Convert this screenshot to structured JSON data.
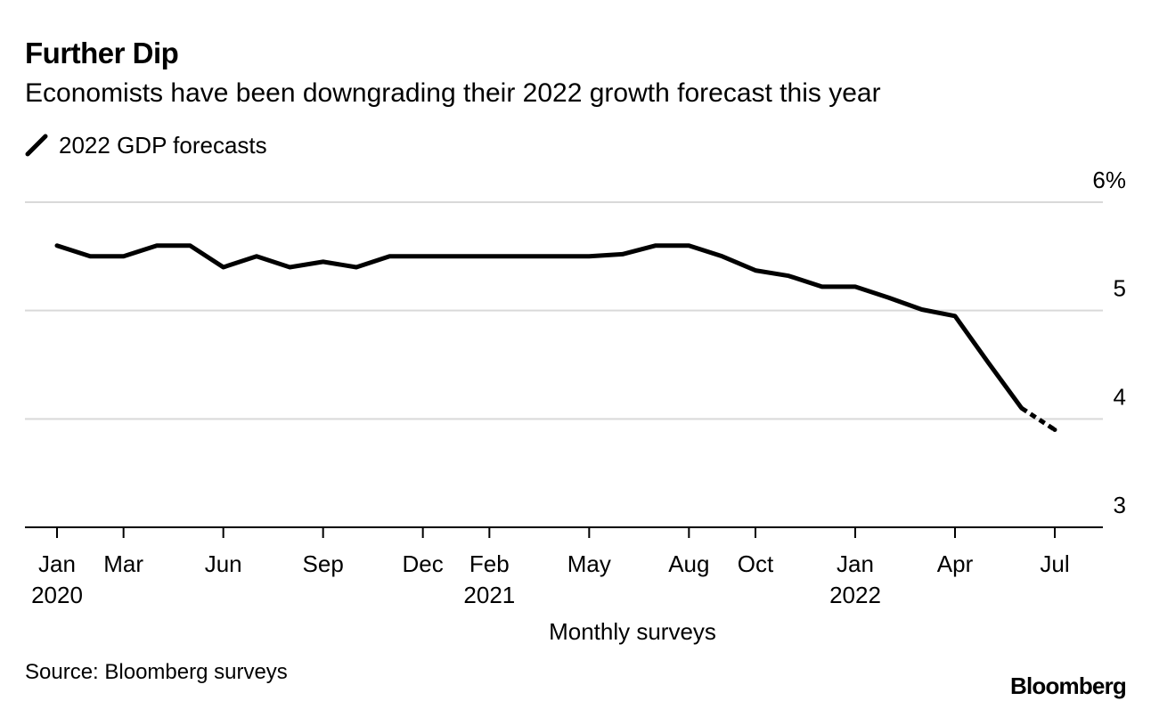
{
  "header": {
    "title": "Further Dip",
    "subtitle": "Economists have been downgrading their 2022 growth forecast this year"
  },
  "legend": {
    "label": "2022 GDP forecasts"
  },
  "footer": {
    "source": "Source: Bloomberg surveys",
    "brand": "Bloomberg"
  },
  "colors": {
    "line": "#000000",
    "grid": "#d9d9d9",
    "axis": "#000000",
    "background": "#ffffff"
  },
  "chart_data": {
    "type": "line",
    "title": "Further Dip",
    "subtitle": "Economists have been downgrading their 2022 growth forecast this year",
    "xlabel": "Monthly surveys",
    "ylabel": "",
    "ylim": [
      3,
      6
    ],
    "yticks": [
      {
        "value": 6,
        "label": "6%"
      },
      {
        "value": 5,
        "label": "5"
      },
      {
        "value": 4,
        "label": "4"
      },
      {
        "value": 3,
        "label": "3"
      }
    ],
    "grid": true,
    "legend_position": "top-left",
    "x_range": [
      0,
      30
    ],
    "x_labels": [
      {
        "x": 0,
        "month": "Jan",
        "year": "2020"
      },
      {
        "x": 2,
        "month": "Mar",
        "year": ""
      },
      {
        "x": 5,
        "month": "Jun",
        "year": ""
      },
      {
        "x": 8,
        "month": "Sep",
        "year": ""
      },
      {
        "x": 11,
        "month": "Dec",
        "year": ""
      },
      {
        "x": 13,
        "month": "Feb",
        "year": "2021"
      },
      {
        "x": 16,
        "month": "May",
        "year": ""
      },
      {
        "x": 19,
        "month": "Aug",
        "year": ""
      },
      {
        "x": 21,
        "month": "Oct",
        "year": ""
      },
      {
        "x": 24,
        "month": "Jan",
        "year": "2022"
      },
      {
        "x": 27,
        "month": "Apr",
        "year": ""
      },
      {
        "x": 30,
        "month": "Jul",
        "year": ""
      }
    ],
    "series": [
      {
        "name": "2022 GDP forecasts",
        "x": [
          0,
          1,
          2,
          3,
          4,
          5,
          6,
          7,
          8,
          9,
          10,
          11,
          12,
          13,
          14,
          15,
          16,
          17,
          18,
          19,
          20,
          21,
          22,
          23,
          24,
          25,
          26,
          27,
          28,
          29
        ],
        "values": [
          5.6,
          5.5,
          5.5,
          5.6,
          5.6,
          5.4,
          5.5,
          5.4,
          5.45,
          5.4,
          5.5,
          5.5,
          5.5,
          5.5,
          5.5,
          5.5,
          5.5,
          5.52,
          5.6,
          5.6,
          5.5,
          5.37,
          5.32,
          5.22,
          5.22,
          5.12,
          5.01,
          4.95,
          4.52,
          4.1
        ],
        "projection": {
          "x": [
            29,
            30
          ],
          "values": [
            4.1,
            3.9
          ]
        }
      }
    ]
  }
}
